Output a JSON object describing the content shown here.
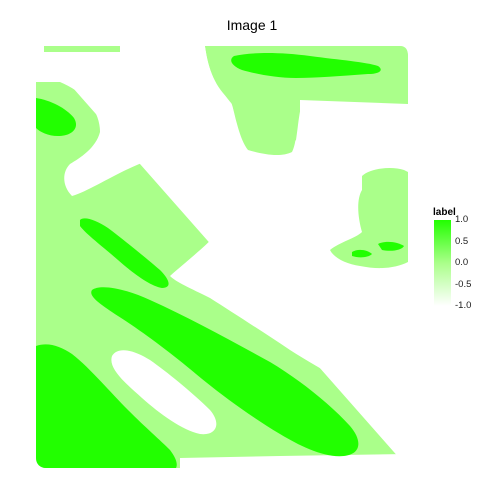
{
  "chart_data": {
    "type": "heatmap",
    "title": "Image 1",
    "legend": {
      "title": "label",
      "ticks": [
        "1.0",
        "0.5",
        "0.0",
        "-0.5",
        "-1.0"
      ],
      "tick_values": [
        1.0,
        0.5,
        0.0,
        -0.5,
        -1.0
      ],
      "range": [
        -1.0,
        1.0
      ],
      "placement": "right"
    },
    "levels": [
      {
        "value": -1.0,
        "color": "#ffffff"
      },
      {
        "value": 0.0,
        "color": "#aaff8a"
      },
      {
        "value": 1.0,
        "color": "#22ff00"
      }
    ],
    "axes": {
      "visible": false
    },
    "grid": false
  },
  "colors": {
    "high": "#22ff00",
    "mid": "#aaff8a",
    "low": "#ffffff"
  }
}
